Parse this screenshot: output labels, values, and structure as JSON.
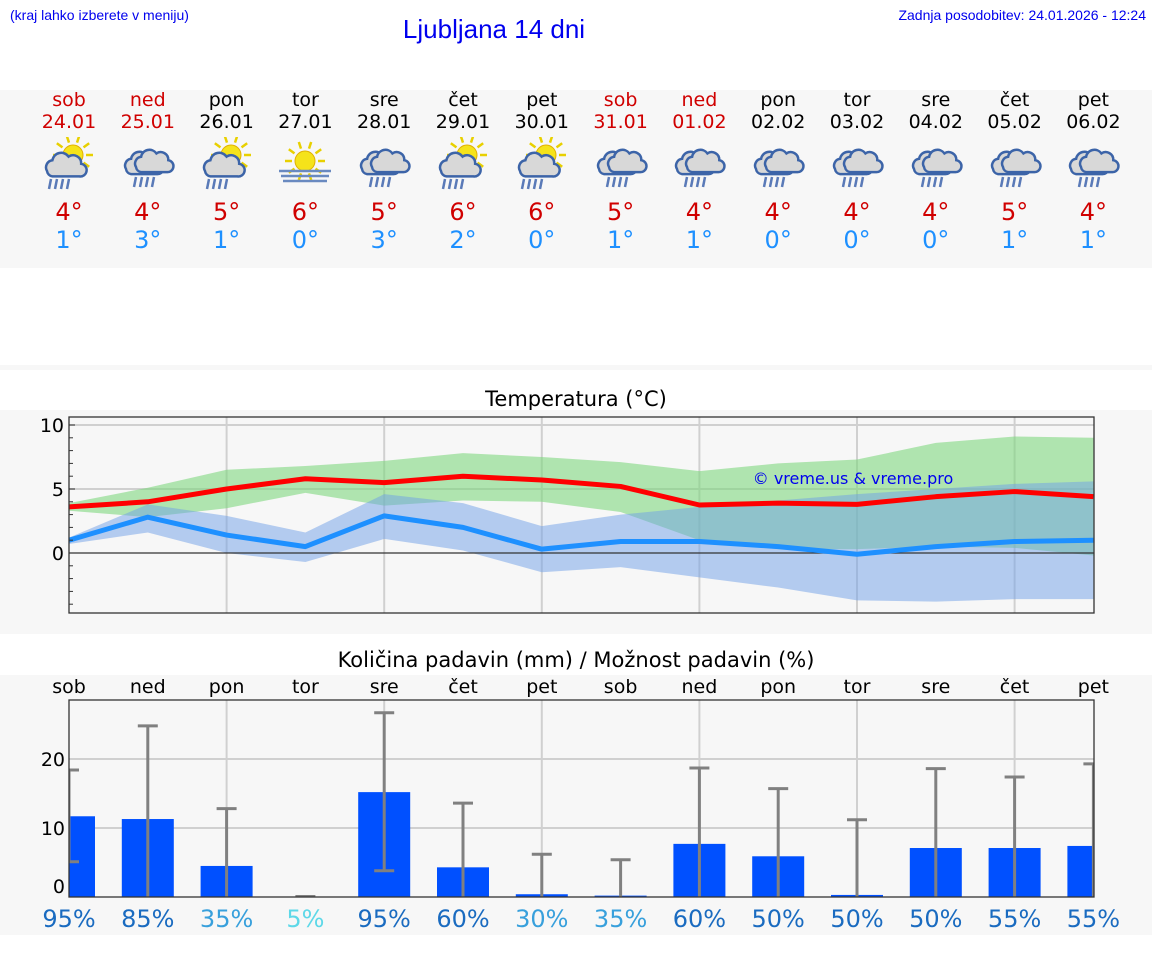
{
  "header": {
    "hint": "(kraj lahko izberete v meniju)",
    "title": "Ljubljana 14 dni",
    "updated": "Zadnja posodobitev: 24.01.2026 - 12:24"
  },
  "colors": {
    "weekend": "#d00000",
    "weekday": "#000000",
    "max": "#d00000",
    "min": "#1e90ff",
    "bar": "#0050ff",
    "whisker": "#808080"
  },
  "days": [
    {
      "name": "sob",
      "date": "24.01",
      "weekend": true,
      "icon": "sun-cloud-rain",
      "max": "4°",
      "min": "1°"
    },
    {
      "name": "ned",
      "date": "25.01",
      "weekend": true,
      "icon": "cloud-rain",
      "max": "4°",
      "min": "3°"
    },
    {
      "name": "pon",
      "date": "26.01",
      "weekend": false,
      "icon": "sun-cloud-rain",
      "max": "5°",
      "min": "1°"
    },
    {
      "name": "tor",
      "date": "27.01",
      "weekend": false,
      "icon": "sun-fog",
      "max": "6°",
      "min": "0°"
    },
    {
      "name": "sre",
      "date": "28.01",
      "weekend": false,
      "icon": "cloud-rain",
      "max": "5°",
      "min": "3°"
    },
    {
      "name": "čet",
      "date": "29.01",
      "weekend": false,
      "icon": "sun-cloud-rain",
      "max": "6°",
      "min": "2°"
    },
    {
      "name": "pet",
      "date": "30.01",
      "weekend": false,
      "icon": "sun-cloud-rain",
      "max": "6°",
      "min": "0°"
    },
    {
      "name": "sob",
      "date": "31.01",
      "weekend": true,
      "icon": "cloud-rain",
      "max": "5°",
      "min": "1°"
    },
    {
      "name": "ned",
      "date": "01.02",
      "weekend": true,
      "icon": "cloud-rain",
      "max": "4°",
      "min": "1°"
    },
    {
      "name": "pon",
      "date": "02.02",
      "weekend": false,
      "icon": "cloud-rain",
      "max": "4°",
      "min": "0°"
    },
    {
      "name": "tor",
      "date": "03.02",
      "weekend": false,
      "icon": "cloud-rain",
      "max": "4°",
      "min": "0°"
    },
    {
      "name": "sre",
      "date": "04.02",
      "weekend": false,
      "icon": "cloud-rain",
      "max": "4°",
      "min": "0°"
    },
    {
      "name": "čet",
      "date": "05.02",
      "weekend": false,
      "icon": "cloud-rain",
      "max": "5°",
      "min": "1°"
    },
    {
      "name": "pet",
      "date": "06.02",
      "weekend": false,
      "icon": "cloud-rain",
      "max": "4°",
      "min": "1°"
    }
  ],
  "chart_data": [
    {
      "type": "line",
      "title": "Temperatura (°C)",
      "watermark": "© vreme.us & vreme.pro",
      "ylim": [
        -4.7,
        10.6
      ],
      "yticks": [
        "10",
        "5",
        "0"
      ],
      "grid": true,
      "series": [
        {
          "values": [
            3.6,
            4.0,
            5.0,
            5.8,
            5.5,
            6.0,
            5.7,
            5.2,
            3.75,
            3.9,
            3.8,
            4.4,
            4.8,
            4.4
          ],
          "color": "#ff0000",
          "band_high": [
            3.9,
            5.1,
            6.5,
            6.8,
            7.2,
            7.8,
            7.5,
            7.1,
            6.4,
            7.0,
            7.3,
            8.6,
            9.1,
            9.0
          ],
          "band_low": [
            3.3,
            2.8,
            3.5,
            4.7,
            3.7,
            4.1,
            4.0,
            3.2,
            1.0,
            0.3,
            0.3,
            0.5,
            0.4,
            -0.2
          ],
          "band_color": "#7fd77f"
        },
        {
          "values": [
            1.0,
            2.8,
            1.4,
            0.5,
            2.9,
            2.0,
            0.3,
            0.9,
            0.9,
            0.5,
            -0.1,
            0.5,
            0.9,
            1.0
          ],
          "color": "#1e90ff",
          "band_high": [
            1.2,
            3.8,
            2.9,
            1.6,
            4.6,
            3.9,
            2.1,
            3.0,
            3.6,
            4.1,
            4.6,
            5.0,
            5.4,
            5.6
          ],
          "band_low": [
            0.7,
            1.6,
            0.0,
            -0.7,
            1.1,
            0.2,
            -1.5,
            -1.1,
            -1.9,
            -2.7,
            -3.7,
            -3.8,
            -3.6,
            -3.6
          ],
          "band_color": "#6f9fe8"
        }
      ]
    },
    {
      "type": "bar",
      "title": "Količina padavin (mm) / Možnost padavin (%)",
      "categories": [
        "sob",
        "ned",
        "pon",
        "tor",
        "sre",
        "čet",
        "pet",
        "sob",
        "ned",
        "pon",
        "tor",
        "sre",
        "čet",
        "pet"
      ],
      "ylim": [
        0,
        28.5
      ],
      "yticks": [
        "20",
        "10",
        "0"
      ],
      "grid": true,
      "values": [
        11.7,
        11.3,
        4.5,
        0.0,
        15.2,
        4.3,
        0.4,
        0.2,
        7.7,
        5.9,
        0.3,
        7.1,
        7.1,
        7.4
      ],
      "error_high": [
        18.4,
        24.8,
        12.8,
        0.0,
        26.7,
        13.6,
        6.2,
        5.4,
        18.7,
        15.7,
        11.2,
        18.6,
        17.4,
        19.3
      ],
      "error_low": [
        5.1,
        0,
        0,
        0,
        3.8,
        0,
        0,
        0,
        0,
        0,
        0,
        0,
        0,
        0
      ],
      "probability": [
        {
          "label": "95%",
          "color": "#1a6bc0"
        },
        {
          "label": "85%",
          "color": "#1a6bc0"
        },
        {
          "label": "35%",
          "color": "#38a0dc"
        },
        {
          "label": "5%",
          "color": "#5ed8e8"
        },
        {
          "label": "95%",
          "color": "#1a6bc0"
        },
        {
          "label": "60%",
          "color": "#1a6bc0"
        },
        {
          "label": "30%",
          "color": "#38a0dc"
        },
        {
          "label": "35%",
          "color": "#38a0dc"
        },
        {
          "label": "60%",
          "color": "#1a6bc0"
        },
        {
          "label": "50%",
          "color": "#1a6bc0"
        },
        {
          "label": "50%",
          "color": "#1a6bc0"
        },
        {
          "label": "50%",
          "color": "#1a6bc0"
        },
        {
          "label": "55%",
          "color": "#1a6bc0"
        },
        {
          "label": "55%",
          "color": "#1a6bc0"
        }
      ]
    }
  ]
}
